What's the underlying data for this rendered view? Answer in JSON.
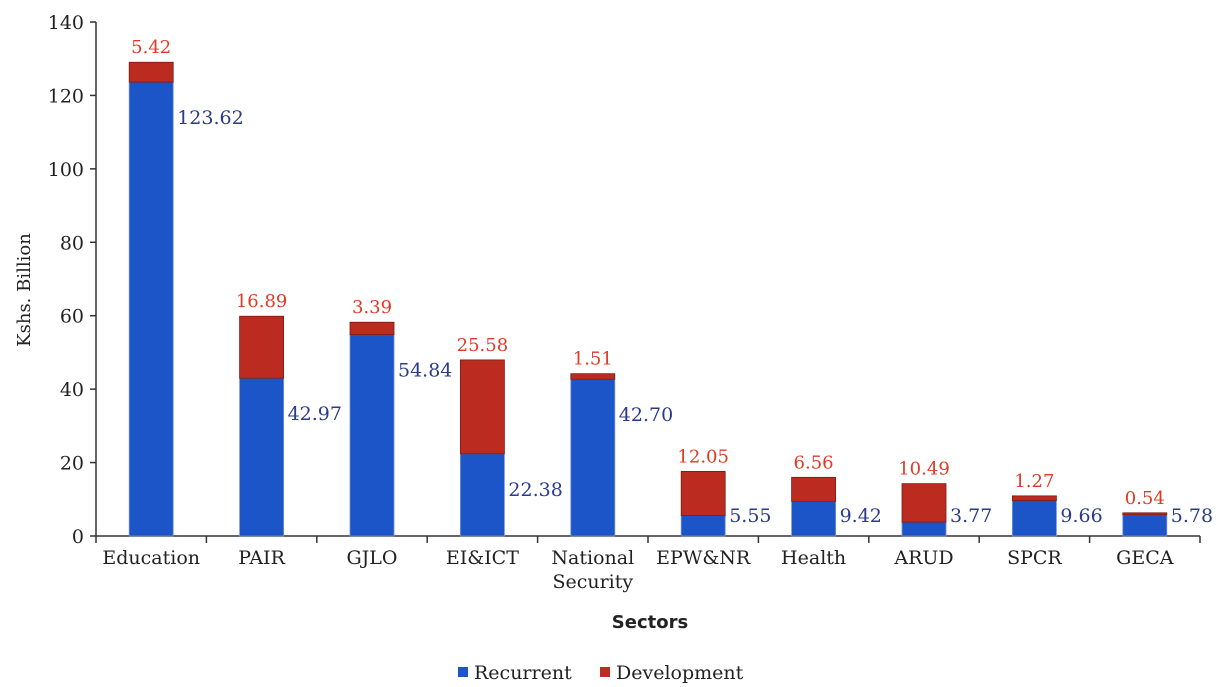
{
  "chart_data": {
    "type": "bar",
    "stacked": true,
    "categories": [
      [
        "Education"
      ],
      [
        "PAIR"
      ],
      [
        "GJLO"
      ],
      [
        "EI&ICT"
      ],
      [
        "National",
        "Security"
      ],
      [
        "EPW&NR"
      ],
      [
        "Health"
      ],
      [
        "ARUD"
      ],
      [
        "SPCR"
      ],
      [
        "GECA"
      ]
    ],
    "series": [
      {
        "name": "Recurrent",
        "color": "#1c55c8",
        "values": [
          123.62,
          42.97,
          54.84,
          22.38,
          42.7,
          5.55,
          9.42,
          3.77,
          9.66,
          5.78
        ],
        "labels": [
          "123.62",
          "42.97",
          "54.84",
          "22.38",
          "42.70",
          "5.55",
          "9.42",
          "3.77",
          "9.66",
          "5.78"
        ]
      },
      {
        "name": "Development",
        "color": "#bb2b1f",
        "values": [
          5.42,
          16.89,
          3.39,
          25.58,
          1.51,
          12.05,
          6.56,
          10.49,
          1.27,
          0.54
        ],
        "labels": [
          "5.42",
          "16.89",
          "3.39",
          "25.58",
          "1.51",
          "12.05",
          "6.56",
          "10.49",
          "1.27",
          "0.54"
        ]
      }
    ],
    "xlabel": "Sectors",
    "ylabel": "Kshs. Billion",
    "ylim": [
      0,
      140
    ],
    "yticks": [
      0,
      20,
      40,
      60,
      80,
      100,
      120,
      140
    ],
    "grid": false,
    "legend": "bottom-center"
  }
}
